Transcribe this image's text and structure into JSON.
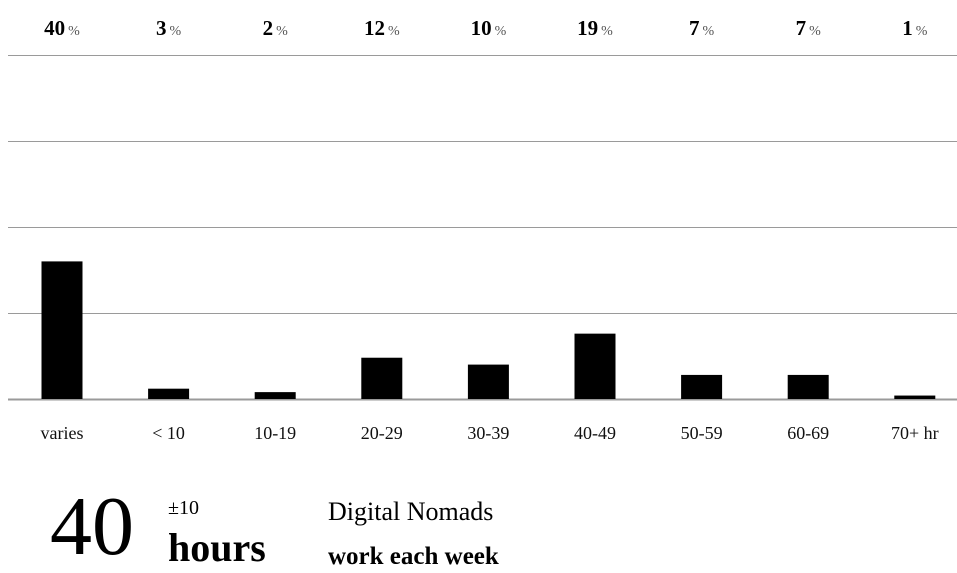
{
  "chart_data": {
    "type": "bar",
    "categories": [
      "varies",
      "< 10",
      "10-19",
      "20-29",
      "30-39",
      "40-49",
      "50-59",
      "60-69",
      "70+ hr"
    ],
    "values": [
      40,
      3,
      2,
      12,
      10,
      19,
      7,
      7,
      1
    ],
    "value_unit": "%",
    "title": "",
    "xlabel": "",
    "ylabel": "",
    "ylim": [
      0,
      100
    ],
    "grid": true,
    "legend": "none",
    "bar_color": "#000000"
  },
  "summary": {
    "value": "40",
    "plus_minus": "±10",
    "unit": "hours",
    "subject": "Digital Nomads",
    "predicate": "work each week"
  }
}
